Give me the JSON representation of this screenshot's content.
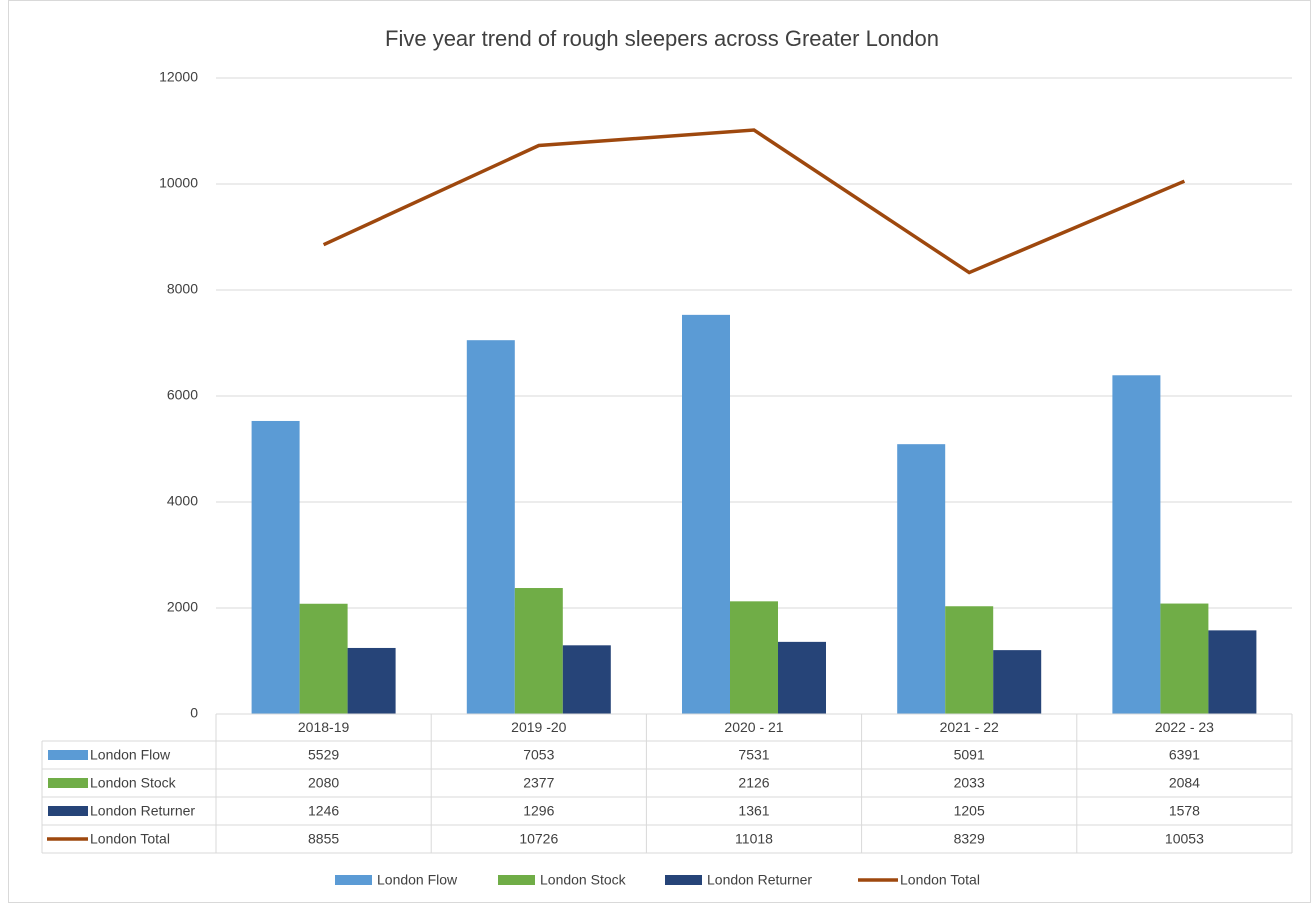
{
  "chart_data": {
    "type": "bar",
    "title": "Five year trend of rough sleepers across Greater London",
    "categories": [
      "2018-19",
      "2019 -20",
      "2020 - 21",
      "2021 - 22",
      "2022 - 23"
    ],
    "series": [
      {
        "name": "London Flow",
        "color": "#5b9bd5",
        "values": [
          5529,
          7053,
          7531,
          5091,
          6391
        ]
      },
      {
        "name": "London Stock",
        "color": "#70ad47",
        "values": [
          2080,
          2377,
          2126,
          2033,
          2084
        ]
      },
      {
        "name": "London Returner",
        "color": "#264478",
        "values": [
          1246,
          1296,
          1361,
          1205,
          1578
        ]
      },
      {
        "name": "London Total",
        "color": "#9e480e",
        "type": "line",
        "values": [
          8855,
          10726,
          11018,
          8329,
          10053
        ]
      }
    ],
    "ylim": [
      0,
      12000
    ],
    "yticks": [
      0,
      2000,
      4000,
      6000,
      8000,
      10000,
      12000
    ],
    "grid": true,
    "data_table": true,
    "legend": "bottom"
  }
}
